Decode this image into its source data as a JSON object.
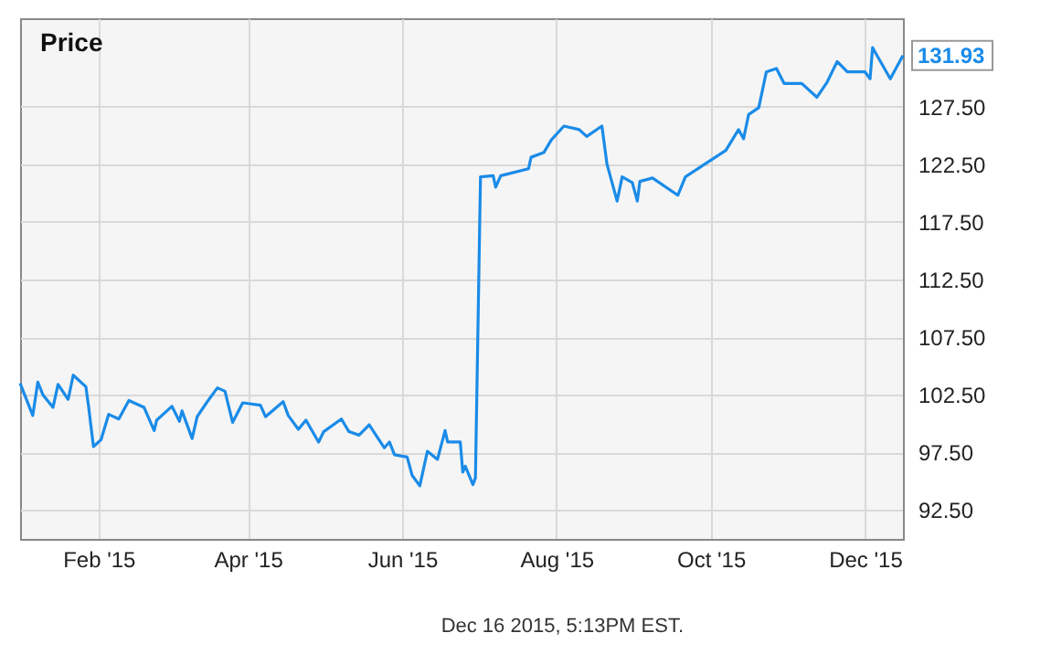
{
  "chart_data": {
    "type": "line",
    "title": "Price",
    "x": [
      "2015-01-01",
      "2015-01-06",
      "2015-01-08",
      "2015-01-10",
      "2015-01-14",
      "2015-01-16",
      "2015-01-20",
      "2015-01-22",
      "2015-01-27",
      "2015-01-28",
      "2015-01-30",
      "2015-02-02",
      "2015-02-05",
      "2015-02-09",
      "2015-02-13",
      "2015-02-19",
      "2015-02-23",
      "2015-02-24",
      "2015-03-02",
      "2015-03-05",
      "2015-03-06",
      "2015-03-10",
      "2015-03-12",
      "2015-03-16",
      "2015-03-20",
      "2015-03-23",
      "2015-03-26",
      "2015-03-30",
      "2015-04-06",
      "2015-04-08",
      "2015-04-15",
      "2015-04-17",
      "2015-04-21",
      "2015-04-24",
      "2015-04-29",
      "2015-05-01",
      "2015-05-08",
      "2015-05-11",
      "2015-05-15",
      "2015-05-19",
      "2015-05-25",
      "2015-05-27",
      "2015-05-29",
      "2015-06-03",
      "2015-06-05",
      "2015-06-08",
      "2015-06-11",
      "2015-06-15",
      "2015-06-18",
      "2015-06-19",
      "2015-06-24",
      "2015-06-25",
      "2015-06-26",
      "2015-06-29",
      "2015-06-30",
      "2015-07-02",
      "2015-07-07",
      "2015-07-08",
      "2015-07-10",
      "2015-07-21",
      "2015-07-22",
      "2015-07-27",
      "2015-07-30",
      "2015-08-04",
      "2015-08-10",
      "2015-08-13",
      "2015-08-19",
      "2015-08-21",
      "2015-08-25",
      "2015-08-27",
      "2015-08-31",
      "2015-09-02",
      "2015-09-03",
      "2015-09-08",
      "2015-09-18",
      "2015-09-21",
      "2015-09-28",
      "2015-10-07",
      "2015-10-12",
      "2015-10-14",
      "2015-10-16",
      "2015-10-20",
      "2015-10-23",
      "2015-10-27",
      "2015-10-30",
      "2015-11-06",
      "2015-11-12",
      "2015-11-16",
      "2015-11-20",
      "2015-11-24",
      "2015-12-01",
      "2015-12-03",
      "2015-12-04",
      "2015-12-11",
      "2015-12-16"
    ],
    "series": [
      {
        "color": "#1a8be8",
        "values": [
          103.5,
          100.7,
          103.6,
          102.5,
          101.4,
          103.4,
          102.1,
          104.2,
          103.2,
          101.6,
          98.0,
          98.6,
          100.8,
          100.4,
          102.0,
          101.4,
          99.4,
          100.3,
          101.5,
          100.2,
          101.1,
          98.7,
          100.6,
          101.9,
          103.1,
          102.8,
          100.1,
          101.8,
          101.6,
          100.6,
          101.9,
          100.7,
          99.5,
          100.3,
          98.4,
          99.3,
          100.4,
          99.3,
          99.0,
          99.9,
          97.9,
          98.4,
          97.3,
          97.1,
          95.5,
          94.6,
          97.6,
          96.9,
          99.4,
          98.4,
          98.4,
          95.8,
          96.3,
          94.7,
          95.3,
          121.4,
          121.5,
          120.5,
          121.5,
          122.1,
          123.1,
          123.5,
          124.6,
          125.8,
          125.5,
          124.9,
          125.8,
          122.5,
          119.3,
          121.4,
          120.9,
          119.3,
          121.0,
          121.3,
          119.8,
          121.4,
          122.4,
          123.7,
          125.5,
          124.7,
          126.8,
          127.4,
          130.5,
          130.8,
          129.5,
          129.5,
          128.3,
          129.6,
          131.4,
          130.5,
          130.5,
          129.9,
          132.6,
          129.9,
          131.93
        ]
      }
    ],
    "xlim": [
      "2015-01-01",
      "2015-12-16"
    ],
    "xticks": [
      {
        "value": "2015-02-01",
        "label": "Feb '15"
      },
      {
        "value": "2015-04-01",
        "label": "Apr '15"
      },
      {
        "value": "2015-06-01",
        "label": "Jun '15"
      },
      {
        "value": "2015-08-01",
        "label": "Aug '15"
      },
      {
        "value": "2015-10-01",
        "label": "Oct '15"
      },
      {
        "value": "2015-12-01",
        "label": "Dec '15"
      }
    ],
    "ylim": [
      90,
      135.15
    ],
    "yticks": [
      {
        "value": 92.5,
        "label": "92.50"
      },
      {
        "value": 97.5,
        "label": "97.50"
      },
      {
        "value": 102.5,
        "label": "102.50"
      },
      {
        "value": 107.5,
        "label": "107.50"
      },
      {
        "value": 112.5,
        "label": "112.50"
      },
      {
        "value": 117.5,
        "label": "117.50"
      },
      {
        "value": 122.5,
        "label": "122.50"
      },
      {
        "value": 127.5,
        "label": "127.50"
      }
    ],
    "grid": true,
    "marker": "none",
    "line_style": "solid",
    "annotations": [
      {
        "text": "131.93",
        "x": "2015-12-16",
        "y": 131.93
      },
      "Dec 16 2015, 5:13PM EST."
    ]
  }
}
